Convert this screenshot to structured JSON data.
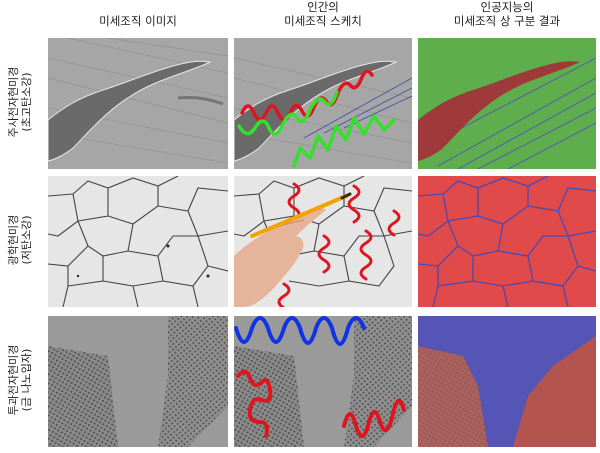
{
  "columns": [
    {
      "lines": [
        "미세조직 이미지"
      ]
    },
    {
      "lines": [
        "인간의",
        "미세조직 스케치"
      ]
    },
    {
      "lines": [
        "인공지능의",
        "미세조직 상 구분 결과"
      ]
    }
  ],
  "rows": [
    {
      "lines": [
        "주사전자현미경",
        "(초고탄소강)"
      ]
    },
    {
      "lines": [
        "광학현미경",
        "(저탄소강)"
      ]
    },
    {
      "lines": [
        "투과전자현미경",
        "(금 나노입자)"
      ]
    }
  ],
  "colors": {
    "sketch_red": "#e0141e",
    "sketch_green": "#33e02a",
    "sketch_blue": "#1133e6",
    "ai_green": "#5fae4e",
    "ai_red": "#9e3a3a",
    "ai_red_bright": "#e04a4a",
    "ai_blue": "#5555b5",
    "ai_red_tem": "#b4544f"
  }
}
